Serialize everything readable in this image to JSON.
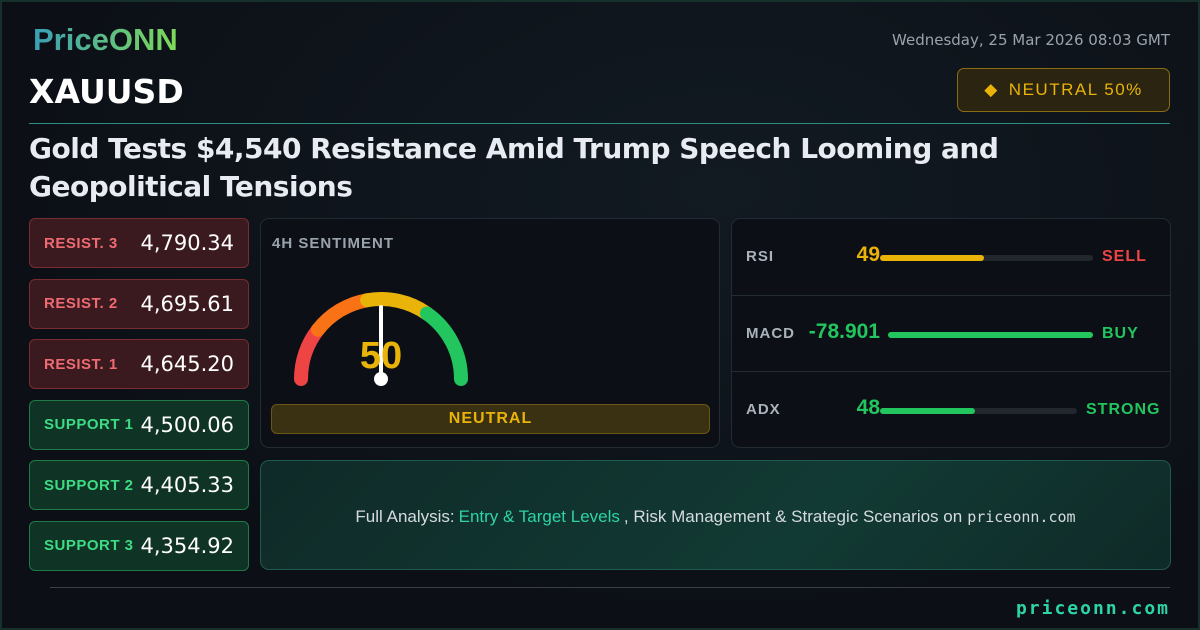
{
  "brand": {
    "logo": "PriceONN",
    "site": "priceonn.com"
  },
  "header": {
    "date": "Wednesday, 25 Mar 2026 08:03 GMT",
    "symbol": "XAUUSD",
    "badge_icon": "diamond-icon",
    "badge": "NEUTRAL 50%"
  },
  "headline": "Gold Tests $4,540 Resistance Amid Trump Speech Looming and Geopolitical Tensions",
  "levels": [
    {
      "label": "RESIST. 3",
      "value": "4,790.34",
      "type": "resistance"
    },
    {
      "label": "RESIST. 2",
      "value": "4,695.61",
      "type": "resistance"
    },
    {
      "label": "RESIST. 1",
      "value": "4,645.20",
      "type": "resistance"
    },
    {
      "label": "SUPPORT 1",
      "value": "4,500.06",
      "type": "support"
    },
    {
      "label": "SUPPORT 2",
      "value": "4,405.33",
      "type": "support"
    },
    {
      "label": "SUPPORT 3",
      "value": "4,354.92",
      "type": "support"
    }
  ],
  "sentiment": {
    "title": "4H SENTIMENT",
    "value": "50",
    "gauge_percent": 50,
    "label": "NEUTRAL"
  },
  "indicators": [
    {
      "name": "RSI",
      "value": "49",
      "fill_percent": 49,
      "signal": "SELL",
      "value_color": "#eab308",
      "bar_color": "#eab308",
      "signal_color": "#ef4444"
    },
    {
      "name": "MACD",
      "value": "-78.901",
      "fill_percent": 100,
      "signal": "BUY",
      "value_color": "#22c55e",
      "bar_color": "#22c55e",
      "signal_color": "#22c55e"
    },
    {
      "name": "ADX",
      "value": "48",
      "fill_percent": 48,
      "signal": "STRONG",
      "value_color": "#22c55e",
      "bar_color": "#22c55e",
      "signal_color": "#22c55e"
    }
  ],
  "cta": {
    "prefix": "Full Analysis:",
    "highlight": "Entry & Target Levels",
    "middle": ", Risk Management & Strategic Scenarios on",
    "site": "priceonn.com"
  },
  "colors": {
    "accent": "#2dd4a7",
    "neutral": "#eab308",
    "bull": "#22c55e",
    "bear": "#ef4444"
  }
}
